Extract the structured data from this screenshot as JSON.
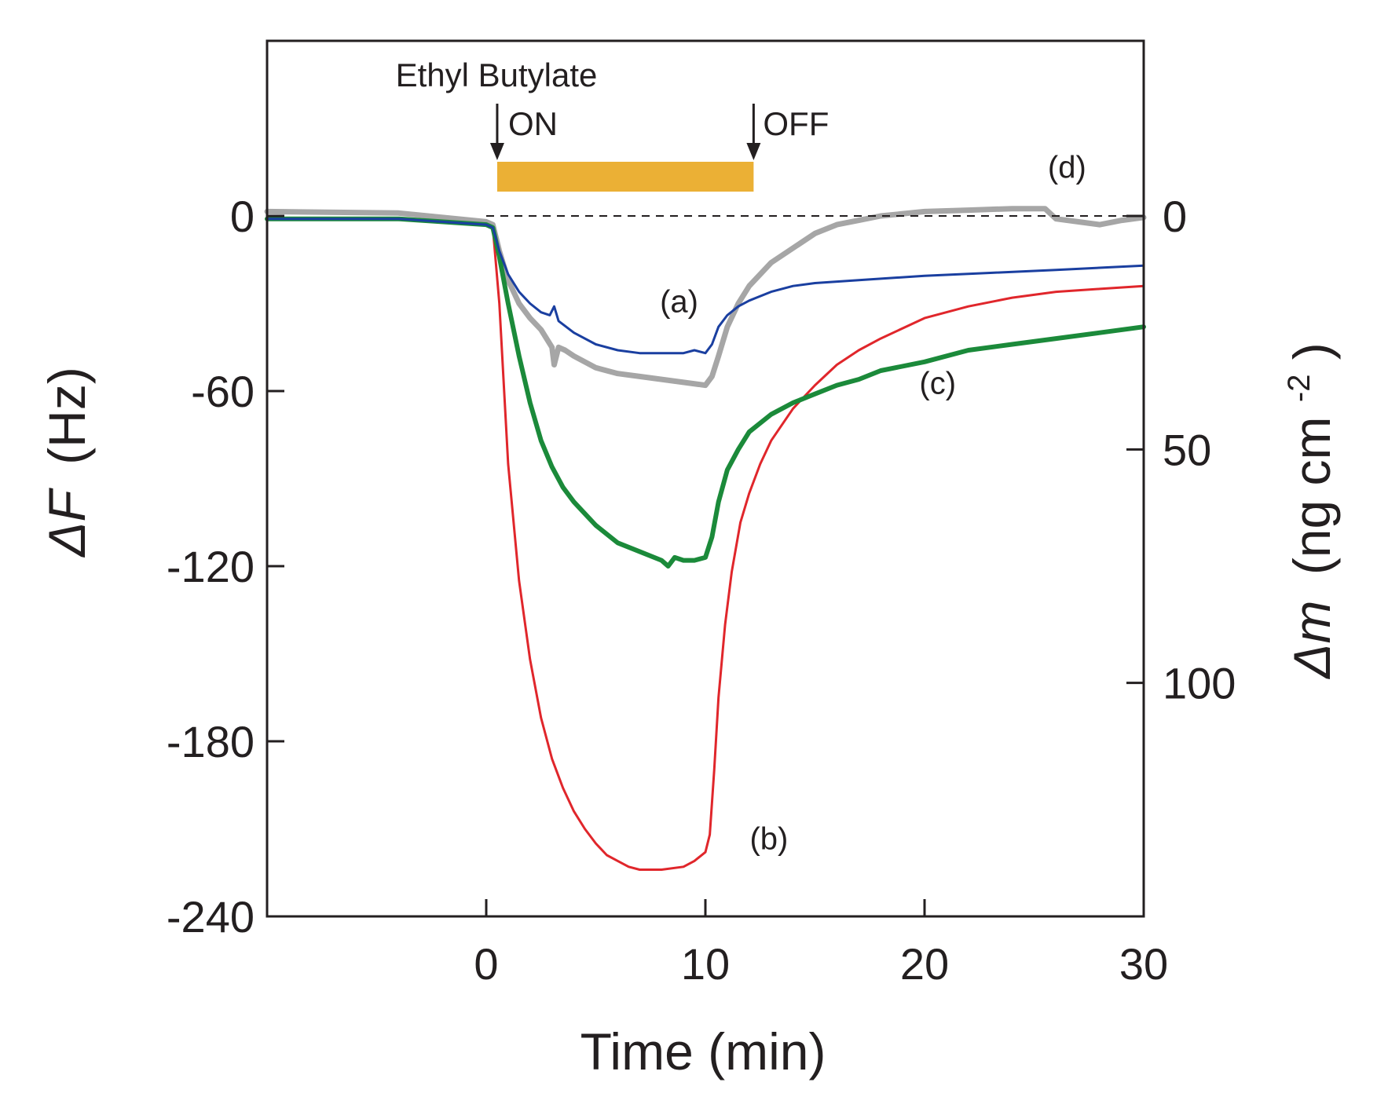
{
  "chart_data": {
    "type": "line",
    "title": "",
    "xlabel": "Time (min)",
    "ylabel_left_symbol": "ΔF",
    "ylabel_left_unit": "(Hz)",
    "ylabel_right_symbol": "Δm",
    "ylabel_right_unit": "(ng cm",
    "ylabel_right_exp": "-2",
    "ylabel_right_close": ")",
    "xlim": [
      -10,
      30
    ],
    "ylim": [
      -240,
      60
    ],
    "x_ticks": [
      0,
      10,
      20,
      30
    ],
    "x_tick_labels": [
      "0",
      "10",
      "20",
      "30"
    ],
    "y_ticks": [
      0,
      -60,
      -120,
      -180,
      -240
    ],
    "y_tick_labels": [
      "0",
      "-60",
      "-120",
      "-180",
      "-240"
    ],
    "y2_ticks_mass": [
      0,
      50,
      100
    ],
    "y2_tick_labels": [
      "0",
      "50",
      "100"
    ],
    "y2_hz_per_unit": -1.6,
    "grid": false,
    "reference_line_y": 0,
    "exposure": {
      "label": "Ethyl Butylate",
      "on_label": "ON",
      "off_label": "OFF",
      "on_x": 0.5,
      "off_x": 12.2,
      "bar_color": "#ebb035"
    },
    "series": [
      {
        "name": "(a)",
        "color": "#1a3fa0",
        "label_x": 8.8,
        "label_y": -33,
        "x": [
          -10,
          -4,
          0,
          0.3,
          0.6,
          1,
          1.5,
          2,
          2.5,
          2.9,
          3.1,
          3.3,
          4,
          5,
          6,
          7,
          8,
          9,
          9.5,
          10,
          10.3,
          10.6,
          11,
          11.5,
          12,
          13,
          14,
          15,
          17,
          20,
          23,
          26,
          30
        ],
        "values": [
          -1,
          -1,
          -3,
          -4,
          -12,
          -20,
          -26,
          -30,
          -33,
          -34,
          -31,
          -36,
          -40,
          -44,
          -46,
          -47,
          -47,
          -47,
          -46,
          -47,
          -44,
          -38,
          -34,
          -31,
          -29,
          -26,
          -24,
          -23,
          -22,
          -20.5,
          -19.5,
          -18.5,
          -17
        ]
      },
      {
        "name": "(b)",
        "color": "#e0262b",
        "label_x": 12.9,
        "label_y": -217,
        "x": [
          -10,
          -4,
          0,
          0.3,
          0.6,
          1,
          1.5,
          2,
          2.5,
          3,
          3.5,
          4,
          4.5,
          5,
          5.5,
          6,
          6.5,
          7,
          8,
          9,
          9.5,
          10,
          10.2,
          10.4,
          10.6,
          10.9,
          11.2,
          11.6,
          12,
          12.5,
          13,
          14,
          15,
          16,
          17,
          18,
          20,
          22,
          24,
          26,
          28,
          30
        ],
        "values": [
          -1,
          -1,
          -3,
          -4,
          -30,
          -85,
          -125,
          -152,
          -172,
          -186,
          -196,
          -204,
          -210,
          -215,
          -219,
          -221,
          -223,
          -224,
          -224,
          -223,
          -221,
          -218,
          -212,
          -190,
          -165,
          -140,
          -122,
          -105,
          -95,
          -85,
          -77,
          -66,
          -58,
          -51,
          -46,
          -42,
          -35,
          -31,
          -28,
          -26,
          -25,
          -24
        ]
      },
      {
        "name": "(c)",
        "color": "#1b8a3a",
        "label_x": 20.6,
        "label_y": -61,
        "x": [
          -10,
          -4,
          0,
          0.3,
          0.6,
          1,
          1.5,
          2,
          2.5,
          3,
          3.5,
          4,
          4.5,
          5,
          6,
          7,
          8,
          8.3,
          8.6,
          9,
          9.5,
          10,
          10.3,
          10.6,
          11,
          11.5,
          12,
          13,
          14,
          15,
          16,
          17,
          18,
          20,
          22,
          24,
          26,
          28,
          30
        ],
        "values": [
          -1,
          -1,
          -3,
          -4,
          -14,
          -30,
          -48,
          -64,
          -77,
          -86,
          -93,
          -98,
          -102,
          -106,
          -112,
          -115,
          -118,
          -120,
          -117,
          -118,
          -118,
          -117,
          -110,
          -98,
          -87,
          -80,
          -74,
          -68,
          -64,
          -61,
          -58,
          -56,
          -53,
          -50,
          -46,
          -44,
          -42,
          -40,
          -38
        ]
      },
      {
        "name": "(d)",
        "color": "#a6a6a6",
        "label_x": 26.5,
        "label_y": 13,
        "x": [
          -10,
          -4,
          0,
          0.3,
          0.6,
          1,
          1.5,
          2,
          2.5,
          3,
          3.1,
          3.3,
          3.6,
          4,
          5,
          6,
          7,
          8,
          9,
          10,
          10.3,
          10.6,
          11,
          11.5,
          12,
          13,
          14,
          15,
          16,
          17,
          18,
          20,
          22,
          24,
          25.5,
          26,
          27,
          28,
          29,
          30
        ],
        "values": [
          1.5,
          1,
          -2,
          -3,
          -12,
          -22,
          -30,
          -35,
          -39,
          -45,
          -51,
          -45,
          -46,
          -48,
          -52,
          -54,
          -55,
          -56,
          -57,
          -58,
          -55,
          -48,
          -38,
          -30,
          -24,
          -16,
          -11,
          -6,
          -3,
          -1.5,
          0,
          1.5,
          2,
          2.5,
          2.5,
          -1,
          -2,
          -3,
          -1.5,
          -0.5
        ]
      }
    ]
  }
}
